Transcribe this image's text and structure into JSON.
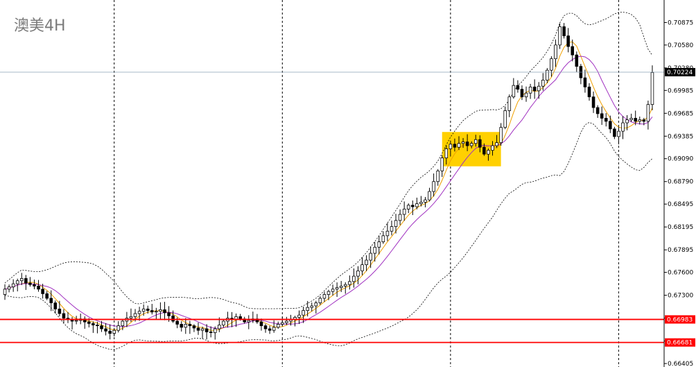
{
  "chart_data": {
    "type": "candlestick",
    "title": "澳美4H",
    "ylim": [
      0.66405,
      0.7117
    ],
    "y_ticks": [
      "0.70875",
      "0.70580",
      "0.70280",
      "0.69985",
      "0.69685",
      "0.69385",
      "0.69090",
      "0.68790",
      "0.68495",
      "0.68195",
      "0.67895",
      "0.67600",
      "0.67300",
      "0.67000",
      "0.66700",
      "0.66405"
    ],
    "grid": "vertical-dotted",
    "current_price": {
      "label": "0.70224",
      "value": 0.70224,
      "color": "#000000"
    },
    "horizontal_levels": [
      {
        "label": "0.66983",
        "value": 0.66983,
        "color": "#ff0000"
      },
      {
        "label": "0.66681",
        "value": 0.66681,
        "color": "#ff0000"
      }
    ],
    "highlight_box": {
      "from_index": 105,
      "to_index": 117,
      "low": 0.6899,
      "high": 0.6944,
      "color": "#ffd000"
    },
    "moving_averages": [
      {
        "color": "#f0a000",
        "period": 5
      },
      {
        "color": "#a030c0",
        "period": 10
      }
    ],
    "bollinger": {
      "period": 20,
      "deviations": 2,
      "color": "#000000"
    },
    "vertical_grid_indices": [
      26,
      66,
      106,
      146
    ],
    "candles_close": [
      0.6738,
      0.6741,
      0.6745,
      0.6749,
      0.6752,
      0.6746,
      0.6744,
      0.6742,
      0.6738,
      0.6732,
      0.6726,
      0.672,
      0.6712,
      0.6706,
      0.67,
      0.6698,
      0.6696,
      0.6697,
      0.6699,
      0.6695,
      0.6693,
      0.6691,
      0.669,
      0.6686,
      0.6683,
      0.668,
      0.6684,
      0.669,
      0.6696,
      0.67,
      0.6702,
      0.6706,
      0.6709,
      0.6712,
      0.671,
      0.6708,
      0.6709,
      0.6711,
      0.6707,
      0.6703,
      0.6696,
      0.6692,
      0.6688,
      0.6692,
      0.669,
      0.6687,
      0.6684,
      0.6686,
      0.6682,
      0.6681,
      0.6686,
      0.6691,
      0.6696,
      0.67,
      0.6698,
      0.6702,
      0.6699,
      0.6695,
      0.6697,
      0.6699,
      0.6695,
      0.669,
      0.6686,
      0.6684,
      0.6688,
      0.6692,
      0.6694,
      0.6696,
      0.6698,
      0.6701,
      0.6704,
      0.671,
      0.6714,
      0.6716,
      0.672,
      0.6726,
      0.6731,
      0.6735,
      0.6738,
      0.674,
      0.6742,
      0.6744,
      0.6748,
      0.6755,
      0.6762,
      0.677,
      0.6776,
      0.6785,
      0.6793,
      0.68,
      0.6808,
      0.6814,
      0.682,
      0.6828,
      0.6836,
      0.6843,
      0.6848,
      0.6846,
      0.685,
      0.6852,
      0.6855,
      0.6866,
      0.6879,
      0.6893,
      0.691,
      0.6922,
      0.6928,
      0.6924,
      0.6929,
      0.6931,
      0.6926,
      0.6929,
      0.6934,
      0.6924,
      0.6915,
      0.692,
      0.6926,
      0.693,
      0.695,
      0.6972,
      0.699,
      0.7005,
      0.7,
      0.699,
      0.6995,
      0.7003,
      0.6998,
      0.7004,
      0.7012,
      0.7025,
      0.704,
      0.7058,
      0.7082,
      0.707,
      0.7056,
      0.7045,
      0.703,
      0.7015,
      0.7003,
      0.699,
      0.6976,
      0.6968,
      0.6962,
      0.6958,
      0.6948,
      0.6938,
      0.6945,
      0.6956,
      0.696,
      0.6962,
      0.6958,
      0.696,
      0.6958,
      0.698,
      0.7022
    ],
    "candles_open": [
      0.6731,
      0.6738,
      0.6741,
      0.6745,
      0.6749,
      0.6752,
      0.6746,
      0.6744,
      0.6742,
      0.6738,
      0.6732,
      0.6726,
      0.672,
      0.6712,
      0.6706,
      0.67,
      0.6698,
      0.6696,
      0.6697,
      0.6699,
      0.6695,
      0.6693,
      0.6691,
      0.669,
      0.6686,
      0.6683,
      0.668,
      0.6684,
      0.669,
      0.6696,
      0.67,
      0.6702,
      0.6706,
      0.6709,
      0.6712,
      0.671,
      0.6708,
      0.6709,
      0.6711,
      0.6707,
      0.6703,
      0.6696,
      0.6692,
      0.6688,
      0.6692,
      0.669,
      0.6687,
      0.6684,
      0.6686,
      0.6682,
      0.6681,
      0.6686,
      0.6691,
      0.6696,
      0.67,
      0.6698,
      0.6702,
      0.6699,
      0.6695,
      0.6697,
      0.6699,
      0.6695,
      0.669,
      0.6686,
      0.6684,
      0.6688,
      0.6692,
      0.6694,
      0.6696,
      0.6698,
      0.6701,
      0.6704,
      0.671,
      0.6714,
      0.6716,
      0.672,
      0.6726,
      0.6731,
      0.6735,
      0.6738,
      0.674,
      0.6742,
      0.6744,
      0.6748,
      0.6755,
      0.6762,
      0.677,
      0.6776,
      0.6785,
      0.6793,
      0.68,
      0.6808,
      0.6814,
      0.682,
      0.6828,
      0.6836,
      0.6843,
      0.6848,
      0.6846,
      0.685,
      0.6852,
      0.6855,
      0.6866,
      0.6879,
      0.6893,
      0.691,
      0.6922,
      0.6928,
      0.6924,
      0.6929,
      0.6931,
      0.6926,
      0.6929,
      0.6934,
      0.6924,
      0.6915,
      0.692,
      0.6926,
      0.693,
      0.695,
      0.6972,
      0.699,
      0.7005,
      0.7,
      0.699,
      0.6995,
      0.7003,
      0.6998,
      0.7004,
      0.7012,
      0.7025,
      0.704,
      0.7058,
      0.7082,
      0.707,
      0.7056,
      0.7045,
      0.703,
      0.7015,
      0.7003,
      0.699,
      0.6976,
      0.6968,
      0.6962,
      0.6958,
      0.6948,
      0.6938,
      0.6945,
      0.6956,
      0.696,
      0.6962,
      0.6958,
      0.696,
      0.6958,
      0.698
    ]
  }
}
